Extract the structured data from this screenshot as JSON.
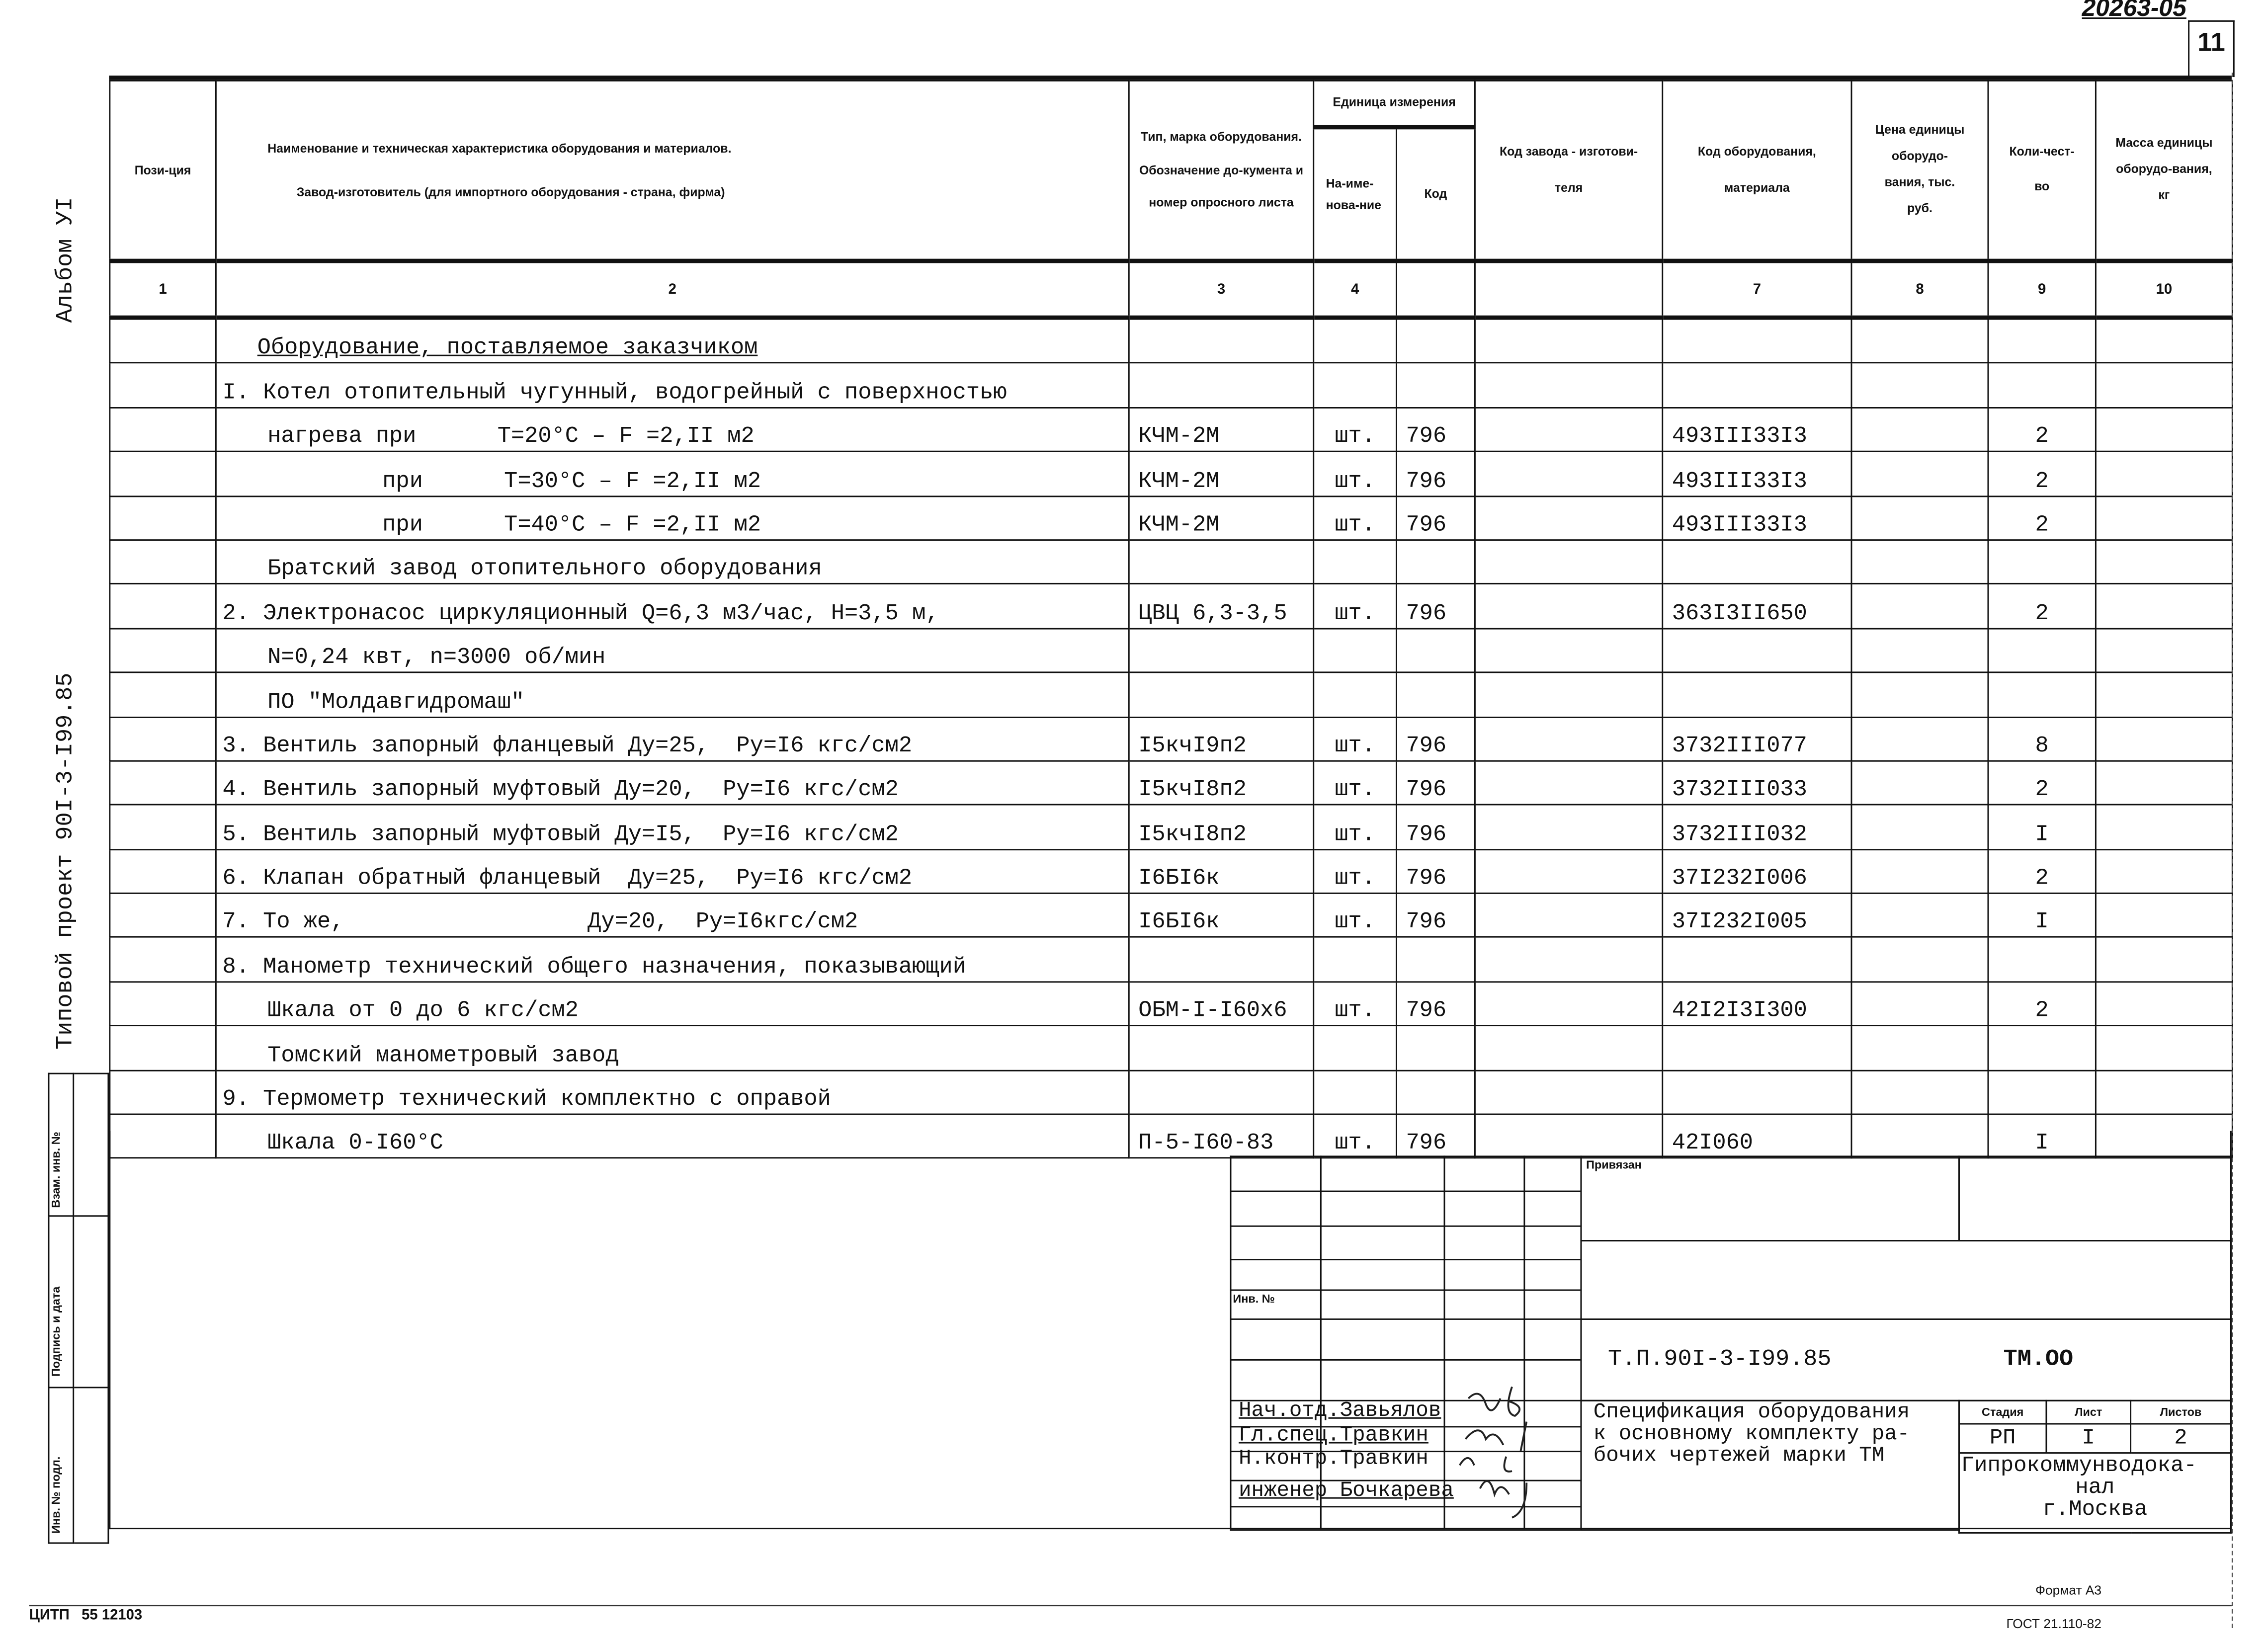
{
  "doc_number": "20263-05",
  "sheet_mark": "11",
  "margin": {
    "album": "Альбом УI",
    "project": "Типовой проект 90I-3-I99.85",
    "stamp_labels": [
      "Взам. инв. №",
      "Подпись и дата",
      "Инв. № подл."
    ]
  },
  "table": {
    "headers": {
      "position": "Пози-ция",
      "name_line1": "Наименование и техническая характеристика оборудования и материалов.",
      "name_line2": "Завод-изготовитель (для импортного оборудования - страна, фирма)",
      "type": "Тип, марка оборудования. Обозначение до-кумента и номер опросного листа",
      "unit": "Единица измерения",
      "unit_name": "На-име-нова-ние",
      "unit_code": "Код",
      "maker_code": "Код завода - изготови-теля",
      "equip_code": "Код оборудования, материала",
      "price": "Цена единицы оборудо-вания, тыс. руб.",
      "qty": "Коли-чест-во",
      "mass": "Масса единицы оборудо-вания, кг"
    },
    "column_numbers": [
      "1",
      "2",
      "3",
      "4",
      "",
      "",
      "7",
      "8",
      "9",
      "10"
    ],
    "rows": [
      {
        "name": "Оборудование, поставляемое заказчиком",
        "type": "",
        "unit": "",
        "unit_code": "",
        "code": "",
        "qty": ""
      },
      {
        "name": "I. Котел отопительный чугунный, водогрейный с поверхностью",
        "type": "",
        "unit": "",
        "unit_code": "",
        "code": "",
        "qty": ""
      },
      {
        "name": "нагрева при      T=20°C – F =2,II м2",
        "type": "КЧМ-2М",
        "unit": "шт.",
        "unit_code": "796",
        "code": "493III33I3",
        "qty": "2"
      },
      {
        "name": "при      T=30°C – F =2,II м2",
        "type": "КЧМ-2М",
        "unit": "шт.",
        "unit_code": "796",
        "code": "493III33I3",
        "qty": "2"
      },
      {
        "name": "при      T=40°C – F =2,II м2",
        "type": "КЧМ-2М",
        "unit": "шт.",
        "unit_code": "796",
        "code": "493III33I3",
        "qty": "2"
      },
      {
        "name": "Братский завод отопительного оборудования",
        "type": "",
        "unit": "",
        "unit_code": "",
        "code": "",
        "qty": ""
      },
      {
        "name": "2. Электронасос циркуляционный Q=6,3 м3/час, H=3,5 м,",
        "type": "ЦВЦ 6,3-3,5",
        "unit": "шт.",
        "unit_code": "796",
        "code": "363I3II650",
        "qty": "2"
      },
      {
        "name": "N=0,24 квт, n=3000 об/мин",
        "type": "",
        "unit": "",
        "unit_code": "",
        "code": "",
        "qty": ""
      },
      {
        "name": "ПО \"Молдавгидромаш\"",
        "type": "",
        "unit": "",
        "unit_code": "",
        "code": "",
        "qty": ""
      },
      {
        "name": "3. Вентиль запорный фланцевый Ду=25,  Ру=I6 кгс/см2",
        "type": "I5кчI9п2",
        "unit": "шт.",
        "unit_code": "796",
        "code": "3732III077",
        "qty": "8"
      },
      {
        "name": "4. Вентиль запорный муфтовый Ду=20,  Ру=I6 кгс/см2",
        "type": "I5кчI8п2",
        "unit": "шт.",
        "unit_code": "796",
        "code": "3732III033",
        "qty": "2"
      },
      {
        "name": "5. Вентиль запорный муфтовый Ду=I5,  Ру=I6 кгс/см2",
        "type": "I5кчI8п2",
        "unit": "шт.",
        "unit_code": "796",
        "code": "3732III032",
        "qty": "I"
      },
      {
        "name": "6. Клапан обратный фланцевый  Ду=25,  Ру=I6 кгс/см2",
        "type": "I6БI6к",
        "unit": "шт.",
        "unit_code": "796",
        "code": "37I232I006",
        "qty": "2"
      },
      {
        "name": "7. То же,                  Ду=20,  Ру=I6кгс/см2",
        "type": "I6БI6к",
        "unit": "шт.",
        "unit_code": "796",
        "code": "37I232I005",
        "qty": "I"
      },
      {
        "name": "8. Манометр технический общего назначения, показывающий",
        "type": "",
        "unit": "",
        "unit_code": "",
        "code": "",
        "qty": ""
      },
      {
        "name": "Шкала от 0 до 6 кгс/см2",
        "type": "ОБМ-I-I60х6",
        "unit": "шт.",
        "unit_code": "796",
        "code": "42I2I3I300",
        "qty": "2"
      },
      {
        "name": "Томский манометровый завод",
        "type": "",
        "unit": "",
        "unit_code": "",
        "code": "",
        "qty": ""
      },
      {
        "name": "9. Термометр технический комплектно с оправой",
        "type": "",
        "unit": "",
        "unit_code": "",
        "code": "",
        "qty": ""
      },
      {
        "name": "Шкала 0-I60°C",
        "type": "П-5-I60-83",
        "unit": "шт.",
        "unit_code": "796",
        "code": "42I060",
        "qty": "I"
      }
    ]
  },
  "title_block": {
    "attached": "Привязан",
    "inv_no": "Инв. №",
    "designation": "Т.П.90I-3-I99.85",
    "mark": "ТМ.ОО",
    "signatures": [
      "Нач.отд.Завьялов",
      "Гл.спец.Травкин",
      "Н.контр.Травкин",
      "инженер Бочкарева"
    ],
    "title": [
      "Спецификация оборудования",
      "к основному комплекту ра-",
      "бочих чертежей марки ТМ"
    ],
    "stage_label": "Стадия",
    "sheet_label": "Лист",
    "sheets_label": "Листов",
    "stage": "РП",
    "sheet": "I",
    "sheets": "2",
    "org": [
      "Гипрокоммунводока-",
      "нал",
      "г.Москва"
    ]
  },
  "footer": {
    "left": "ЦИТП   55 12103",
    "format": "Формат А3",
    "gost": "ГОСТ 21.110-82"
  }
}
